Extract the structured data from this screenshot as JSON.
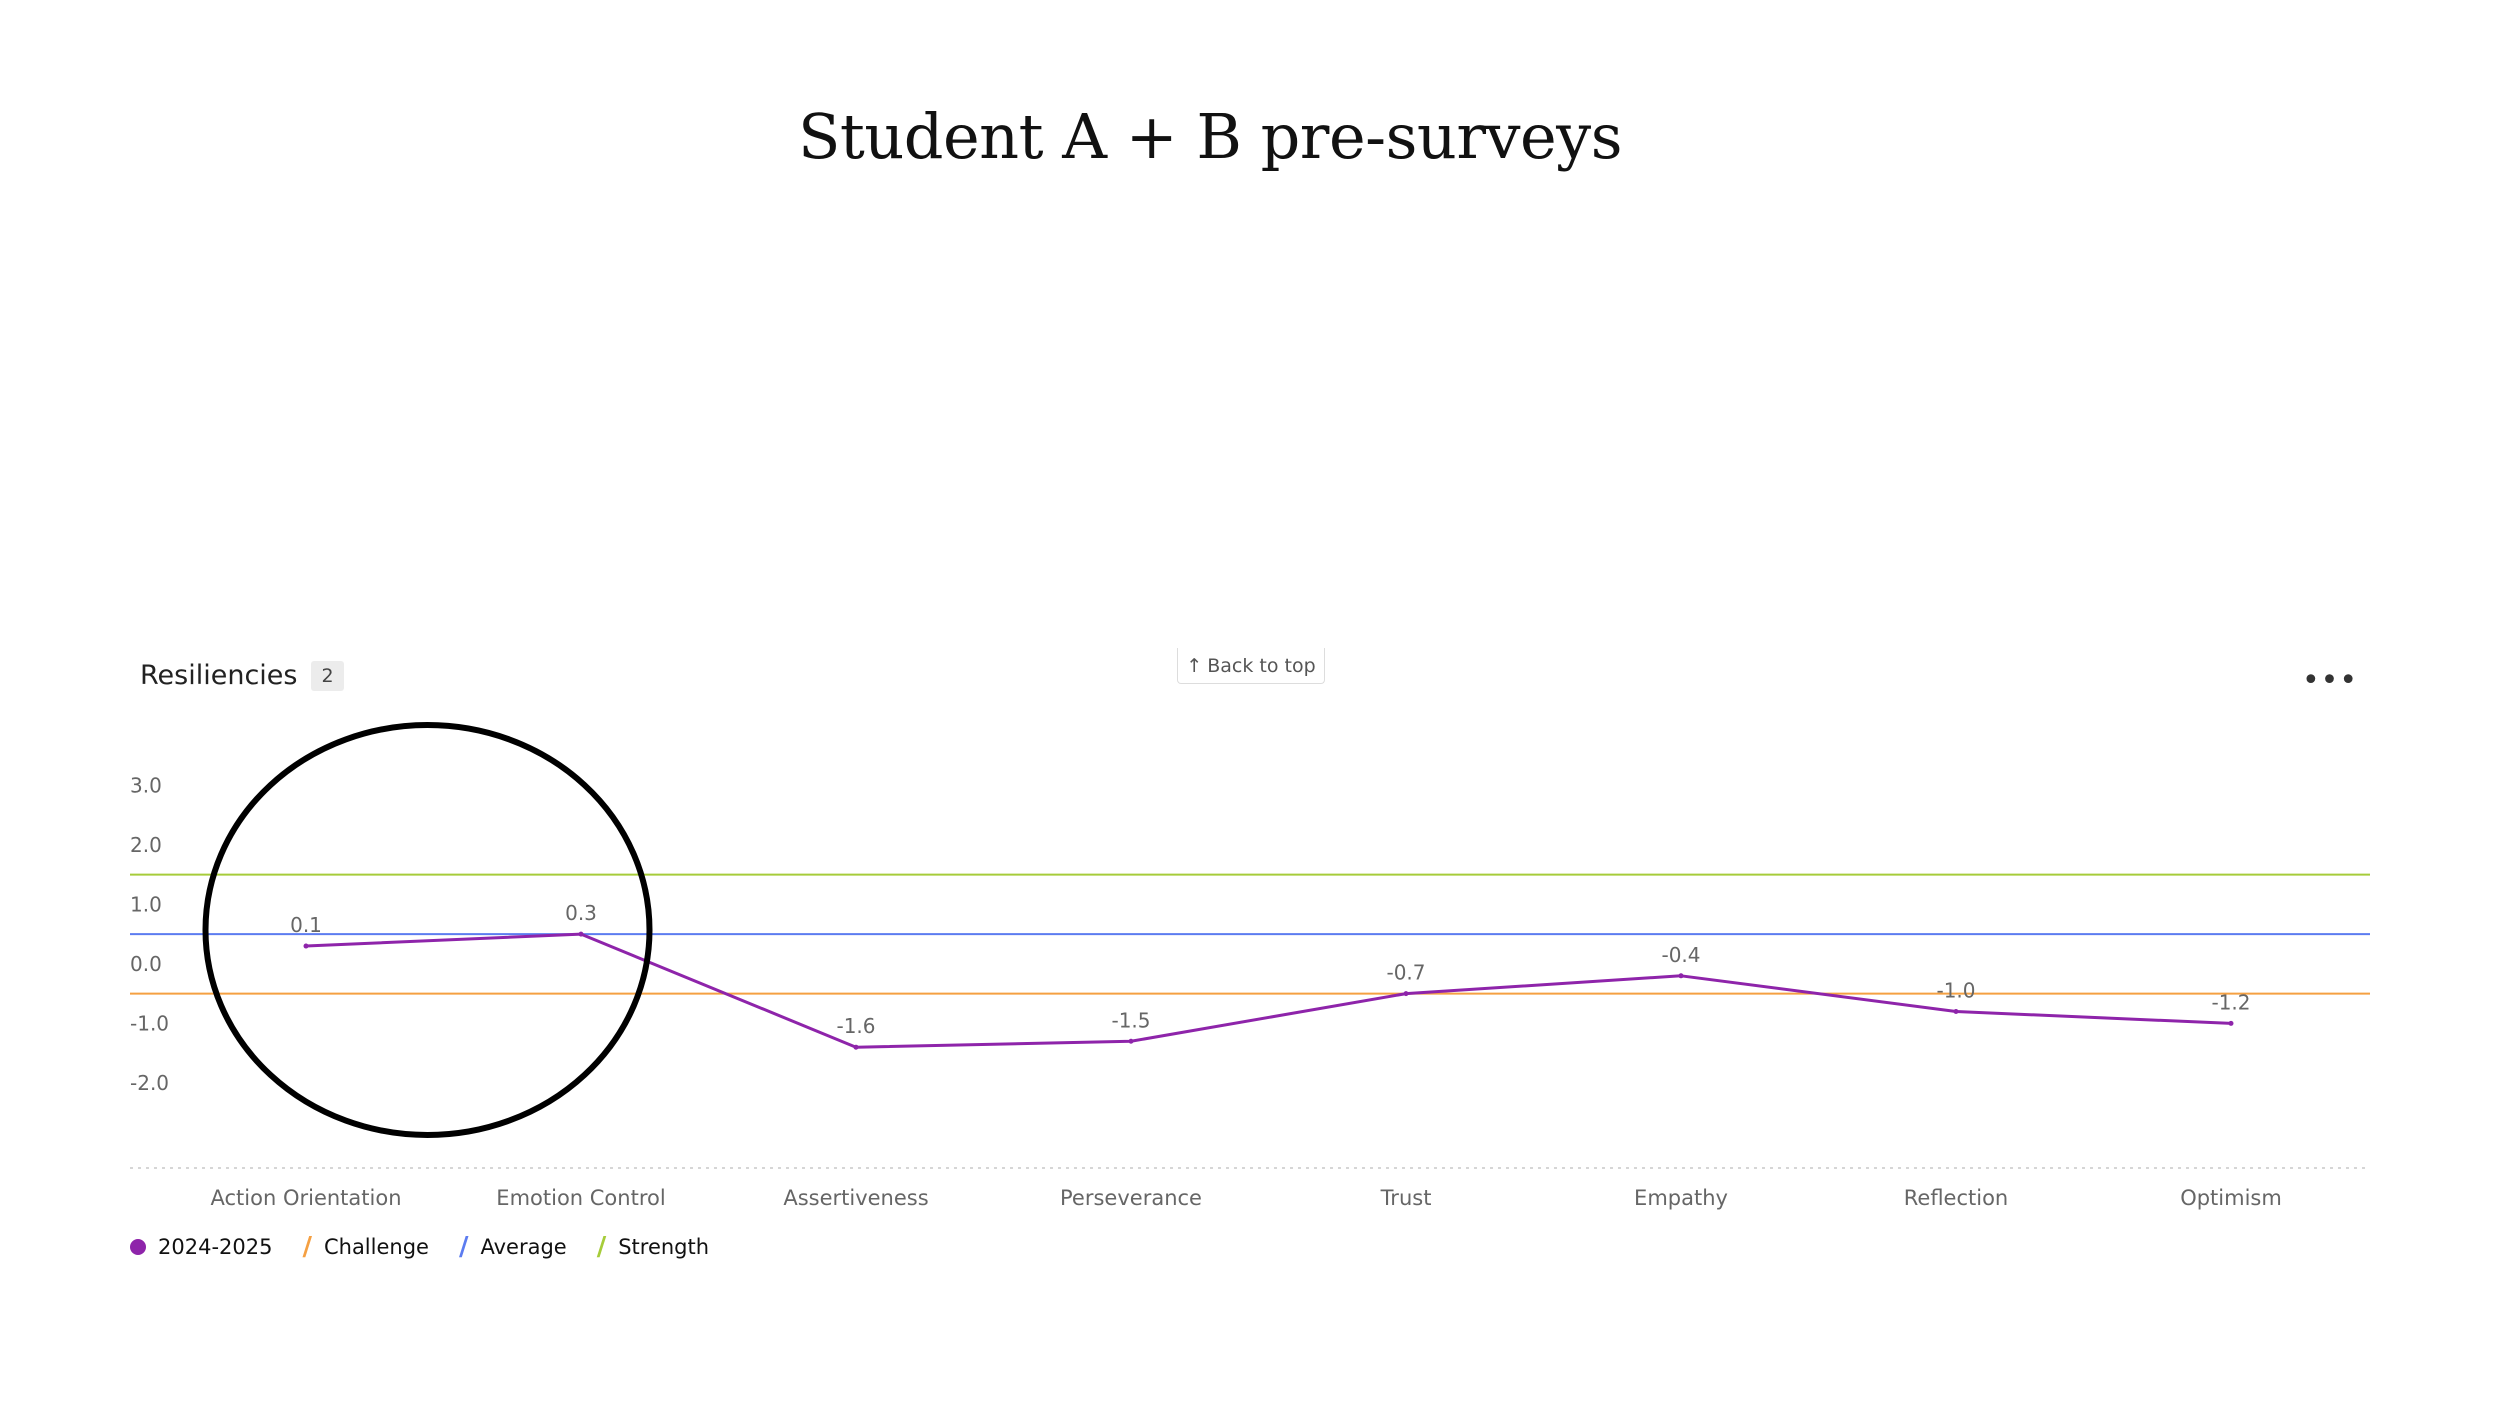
{
  "slide": {
    "title": "Student A + B pre-surveys"
  },
  "card": {
    "title": "Resiliencies",
    "count": "2",
    "back_to_top": "Back to top",
    "back_to_top_icon": "arrow-up-icon",
    "more_icon": "more-dots-icon"
  },
  "colors": {
    "series": "#8e24aa",
    "challenge": "#f5a042",
    "average": "#5c7cf0",
    "strength": "#a6cc3a",
    "axis_text": "#666666",
    "annotation": "#000000"
  },
  "chart_data": {
    "type": "line",
    "categories": [
      "Action Orientation",
      "Emotion Control",
      "Assertiveness",
      "Perseverance",
      "Trust",
      "Empathy",
      "Reflection",
      "Optimism"
    ],
    "series": [
      {
        "name": "2024-2025",
        "values": [
          0.1,
          0.3,
          -1.6,
          -1.5,
          -0.7,
          -0.4,
          -1.0,
          -1.2
        ],
        "labels": [
          "0.1",
          "0.3",
          "-1.6",
          "-1.5",
          "-0.7",
          "-0.4",
          "-1.0",
          "-1.2"
        ]
      }
    ],
    "reference_lines": [
      {
        "name": "Challenge",
        "value": -0.7
      },
      {
        "name": "Average",
        "value": 0.3
      },
      {
        "name": "Strength",
        "value": 1.3
      }
    ],
    "yticks": [
      "3.0",
      "2.0",
      "1.0",
      "0.0",
      "-1.0",
      "-2.0"
    ],
    "ylim": [
      -2.0,
      3.0
    ],
    "grid": false,
    "legend_position": "bottom-left",
    "annotation": {
      "shape": "circle",
      "around": [
        "Action Orientation",
        "Emotion Control"
      ]
    }
  }
}
